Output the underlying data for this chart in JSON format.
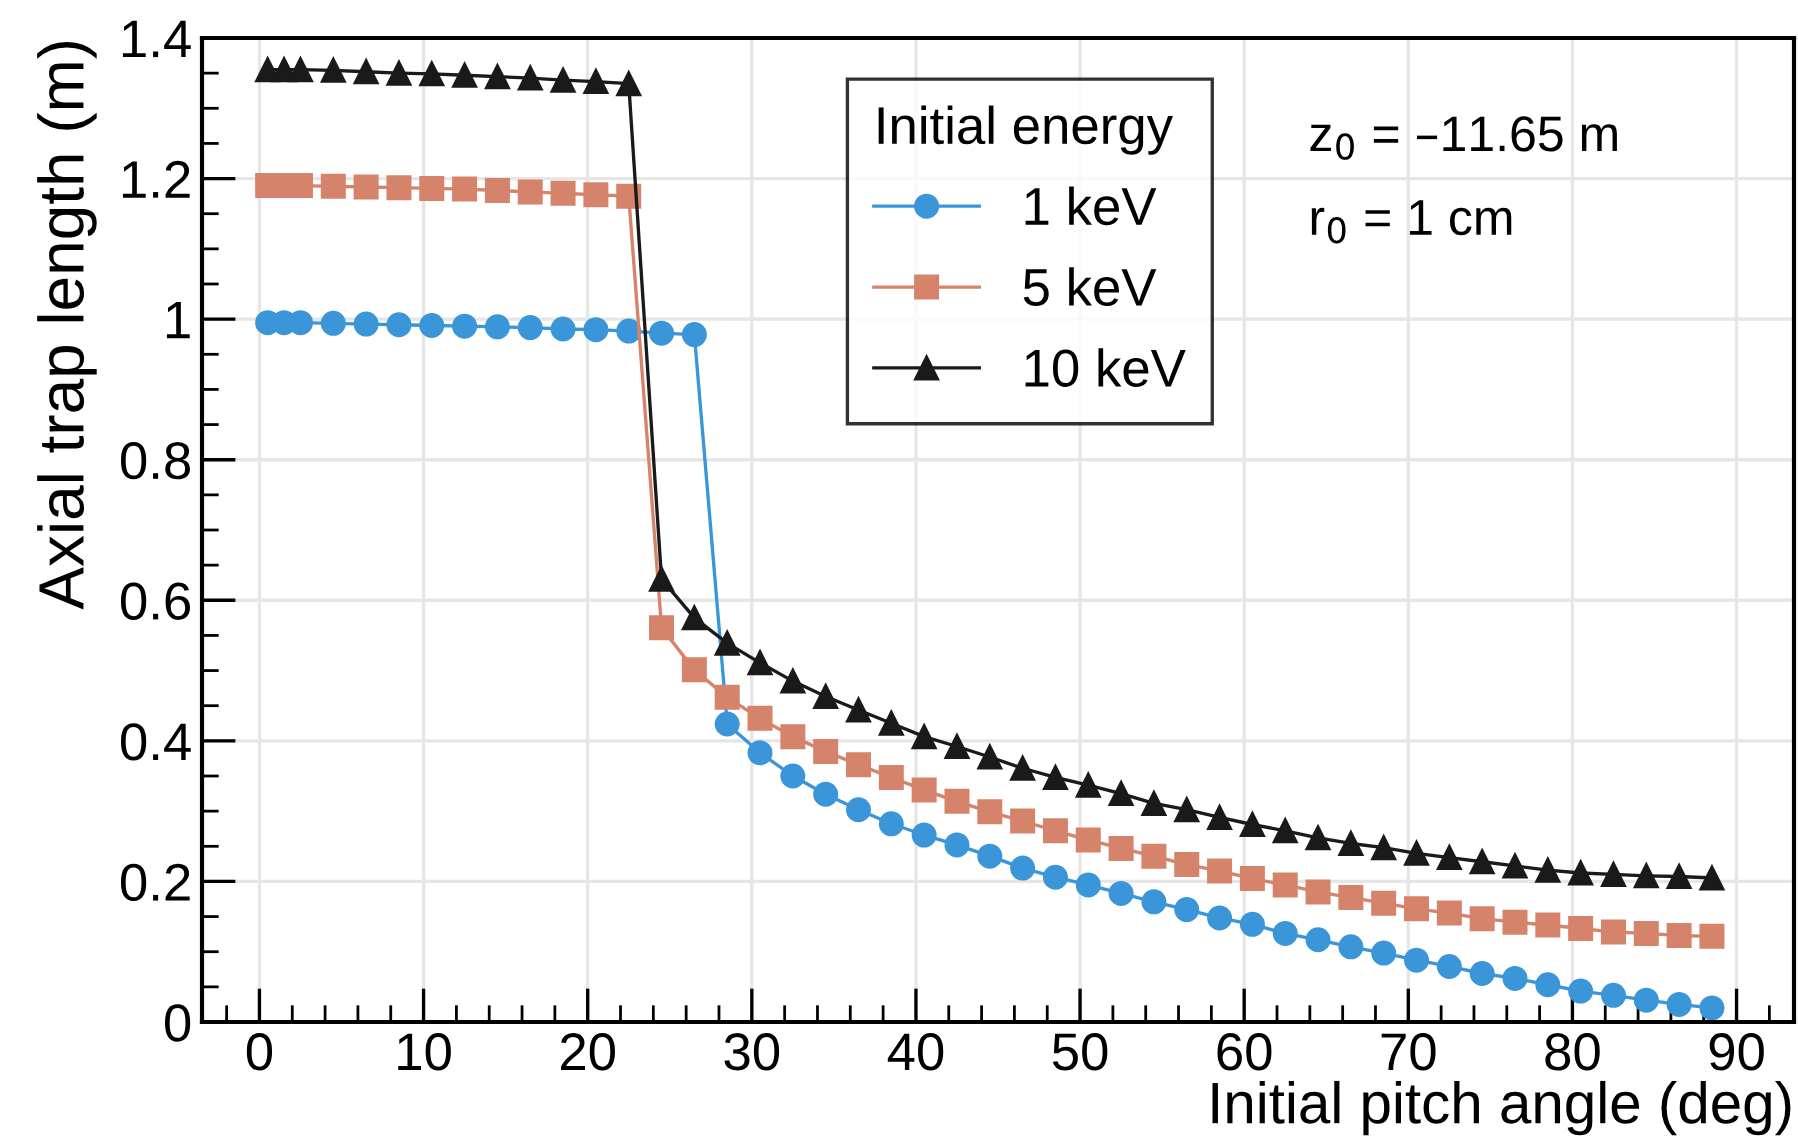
{
  "chart_data": {
    "type": "line",
    "xlabel": "Initial pitch angle (deg)",
    "ylabel": "Axial trap length (m)",
    "legend_title": "Initial energy",
    "xlim": [
      -3.5,
      93.5
    ],
    "xticks": [
      0,
      10,
      20,
      30,
      40,
      50,
      60,
      70,
      80,
      90
    ],
    "ylim": [
      0,
      1.4
    ],
    "yticks": [
      0,
      0.2,
      0.4,
      0.6,
      0.8,
      1,
      1.2,
      1.4
    ],
    "grid": true,
    "legend": "top",
    "line_style": "solid",
    "annotations": [
      "z$_{0}$ = –11.65 m",
      "r$_{0}$ = 1 cm"
    ],
    "series": [
      {
        "name": "1 keV",
        "color": "#3a96d8",
        "marker": "circle",
        "x": [
          0.5,
          1.5,
          2.5,
          4.5,
          6.5,
          8.5,
          10.5,
          12.5,
          14.5,
          16.5,
          18.5,
          20.5,
          22.5,
          24.5,
          26.5,
          28.5,
          30.5,
          32.5,
          34.5,
          36.5,
          38.5,
          40.5,
          42.5,
          44.5,
          46.5,
          48.5,
          50.5,
          52.5,
          54.5,
          56.5,
          58.5,
          60.5,
          62.5,
          64.5,
          66.5,
          68.5,
          70.5,
          72.5,
          74.5,
          76.5,
          78.5,
          80.5,
          82.5,
          84.5,
          86.5,
          88.5
        ],
        "values": [
          0.995,
          0.995,
          0.995,
          0.994,
          0.993,
          0.992,
          0.991,
          0.99,
          0.989,
          0.988,
          0.986,
          0.985,
          0.983,
          0.98,
          0.978,
          0.424,
          0.383,
          0.35,
          0.324,
          0.302,
          0.282,
          0.266,
          0.252,
          0.236,
          0.219,
          0.206,
          0.195,
          0.183,
          0.171,
          0.16,
          0.148,
          0.139,
          0.126,
          0.117,
          0.107,
          0.098,
          0.088,
          0.079,
          0.069,
          0.062,
          0.053,
          0.044,
          0.038,
          0.031,
          0.025,
          0.02
        ]
      },
      {
        "name": "5 keV",
        "color": "#d6836b",
        "marker": "square",
        "x": [
          0.5,
          1.5,
          2.5,
          4.5,
          6.5,
          8.5,
          10.5,
          12.5,
          14.5,
          16.5,
          18.5,
          20.5,
          22.5,
          24.5,
          26.5,
          28.5,
          30.5,
          32.5,
          34.5,
          36.5,
          38.5,
          40.5,
          42.5,
          44.5,
          46.5,
          48.5,
          50.5,
          52.5,
          54.5,
          56.5,
          58.5,
          60.5,
          62.5,
          64.5,
          66.5,
          68.5,
          70.5,
          72.5,
          74.5,
          76.5,
          78.5,
          80.5,
          82.5,
          84.5,
          86.5,
          88.5
        ],
        "values": [
          1.19,
          1.19,
          1.19,
          1.189,
          1.188,
          1.187,
          1.186,
          1.185,
          1.183,
          1.181,
          1.179,
          1.177,
          1.175,
          0.561,
          0.501,
          0.462,
          0.432,
          0.406,
          0.385,
          0.366,
          0.348,
          0.33,
          0.314,
          0.299,
          0.286,
          0.272,
          0.259,
          0.247,
          0.236,
          0.224,
          0.215,
          0.204,
          0.195,
          0.185,
          0.177,
          0.169,
          0.161,
          0.155,
          0.147,
          0.142,
          0.138,
          0.133,
          0.128,
          0.126,
          0.123,
          0.122
        ]
      },
      {
        "name": "10 keV",
        "color": "#1a1a1a",
        "marker": "triangle",
        "x": [
          0.5,
          1.5,
          2.5,
          4.5,
          6.5,
          8.5,
          10.5,
          12.5,
          14.5,
          16.5,
          18.5,
          20.5,
          22.5,
          24.5,
          26.5,
          28.5,
          30.5,
          32.5,
          34.5,
          36.5,
          38.5,
          40.5,
          42.5,
          44.5,
          46.5,
          48.5,
          50.5,
          52.5,
          54.5,
          56.5,
          58.5,
          60.5,
          62.5,
          64.5,
          66.5,
          68.5,
          70.5,
          72.5,
          74.5,
          76.5,
          78.5,
          80.5,
          82.5,
          84.5,
          86.5,
          88.5
        ],
        "values": [
          1.355,
          1.355,
          1.355,
          1.354,
          1.352,
          1.35,
          1.349,
          1.347,
          1.345,
          1.343,
          1.34,
          1.338,
          1.335,
          0.63,
          0.575,
          0.539,
          0.511,
          0.485,
          0.463,
          0.444,
          0.425,
          0.406,
          0.392,
          0.377,
          0.361,
          0.348,
          0.337,
          0.325,
          0.311,
          0.302,
          0.291,
          0.281,
          0.272,
          0.262,
          0.254,
          0.248,
          0.24,
          0.234,
          0.228,
          0.222,
          0.216,
          0.212,
          0.21,
          0.208,
          0.207,
          0.205
        ]
      }
    ]
  }
}
